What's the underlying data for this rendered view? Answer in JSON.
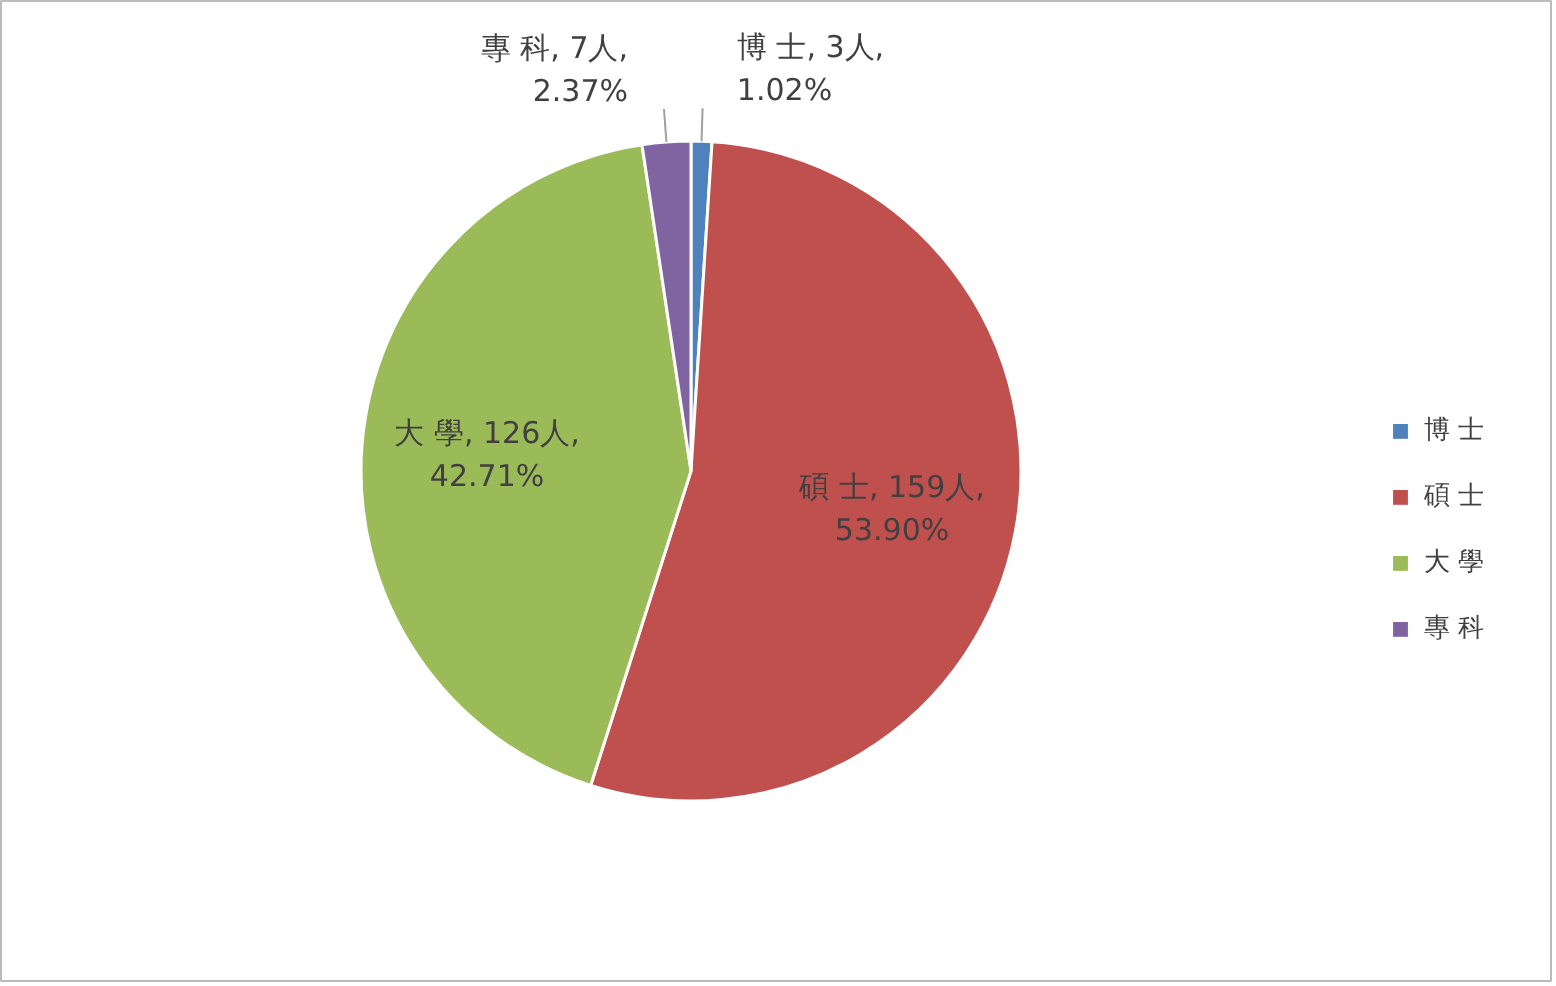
{
  "chart_data": {
    "type": "pie",
    "categories": [
      "博 士",
      "碩 士",
      "大 學",
      "專 科"
    ],
    "values": [
      3,
      159,
      126,
      7
    ],
    "colors": [
      "#4f81bd",
      "#c0504d",
      "#9bbb59",
      "#8064a2"
    ],
    "value_labels": [
      "博 士, 3人, 1.02%",
      "碩 士, 159人, 53.90%",
      "大 學, 126人, 42.71%",
      "專 科, 7人, 2.37%"
    ],
    "legend": "right"
  }
}
